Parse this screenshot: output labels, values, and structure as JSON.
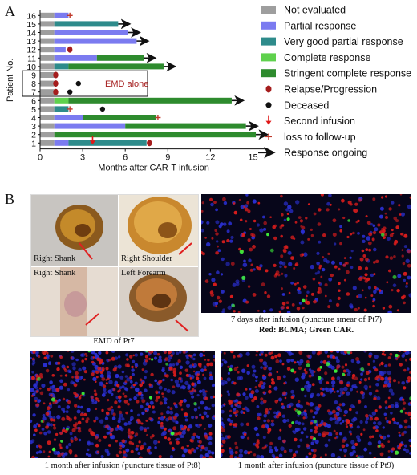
{
  "panel_a_letter": "A",
  "panel_b_letter": "B",
  "colors": {
    "not_evaluated": "#9e9e9e",
    "partial_response": "#7b7bf0",
    "very_good_partial_response": "#2e8b8b",
    "complete_response": "#5fd14d",
    "stringent_complete_response": "#2e8b2e",
    "relapse": "#a51d1d",
    "deceased": "#111111",
    "second_infusion": "#e01818",
    "loss_to_followup": "#c0392b"
  },
  "chart_data": {
    "type": "bar",
    "subtype": "swimmer-plot",
    "xlabel": "Months after CAR-T infusion",
    "ylabel": "Patient No.",
    "xlim": [
      0,
      16
    ],
    "xticks": [
      0,
      3,
      6,
      9,
      12,
      15
    ],
    "grid": false,
    "legend_position": "right",
    "series_legend": [
      {
        "key": "not_evaluated",
        "name": "Not evaluated",
        "kind": "bar"
      },
      {
        "key": "partial_response",
        "name": "Partial response",
        "kind": "bar"
      },
      {
        "key": "very_good_partial_response",
        "name": "Very good partial response",
        "kind": "bar"
      },
      {
        "key": "complete_response",
        "name": "Complete response",
        "kind": "bar"
      },
      {
        "key": "stringent_complete_response",
        "name": "Stringent complete response",
        "kind": "bar"
      },
      {
        "key": "relapse",
        "name": "Relapse/Progression",
        "kind": "oval"
      },
      {
        "key": "deceased",
        "name": "Deceased",
        "kind": "dot"
      },
      {
        "key": "second_infusion",
        "name": "Second infusion",
        "kind": "down-arrow"
      },
      {
        "key": "loss_to_followup",
        "name": "loss to follow-up",
        "kind": "plus"
      },
      {
        "key": "ongoing",
        "name": "Response ongoing",
        "kind": "right-arrow"
      }
    ],
    "annotation": "EMD alone",
    "emd_patients": [
      "7",
      "8",
      "9"
    ],
    "patients": [
      {
        "id": "16",
        "segments": [
          [
            "not_evaluated",
            0,
            1
          ],
          [
            "partial_response",
            1,
            2
          ]
        ],
        "markers": [
          [
            "loss_to_followup",
            2.1
          ]
        ]
      },
      {
        "id": "15",
        "segments": [
          [
            "not_evaluated",
            0,
            1
          ],
          [
            "very_good_partial_response",
            1,
            5.5
          ]
        ],
        "markers": [
          [
            "ongoing",
            5.5
          ]
        ]
      },
      {
        "id": "14",
        "segments": [
          [
            "not_evaluated",
            0,
            1
          ],
          [
            "partial_response",
            1,
            6.2
          ]
        ],
        "markers": [
          [
            "ongoing",
            6.2
          ]
        ]
      },
      {
        "id": "13",
        "segments": [
          [
            "not_evaluated",
            0,
            1
          ],
          [
            "partial_response",
            1,
            6.8
          ]
        ],
        "markers": [
          [
            "ongoing",
            6.8
          ]
        ]
      },
      {
        "id": "12",
        "segments": [
          [
            "not_evaluated",
            0,
            1
          ],
          [
            "partial_response",
            1,
            1.8
          ]
        ],
        "markers": [
          [
            "relapse",
            2.1
          ]
        ]
      },
      {
        "id": "11",
        "segments": [
          [
            "not_evaluated",
            0,
            1
          ],
          [
            "partial_response",
            1,
            4
          ],
          [
            "stringent_complete_response",
            4,
            7.3
          ]
        ],
        "markers": [
          [
            "ongoing",
            7.3
          ]
        ]
      },
      {
        "id": "10",
        "segments": [
          [
            "not_evaluated",
            0,
            1
          ],
          [
            "very_good_partial_response",
            1,
            2
          ],
          [
            "stringent_complete_response",
            2,
            8.7
          ]
        ],
        "markers": [
          [
            "ongoing",
            8.7
          ]
        ]
      },
      {
        "id": "9",
        "segments": [
          [
            "not_evaluated",
            0,
            1
          ]
        ],
        "markers": [
          [
            "relapse",
            1.1
          ]
        ]
      },
      {
        "id": "8",
        "segments": [
          [
            "not_evaluated",
            0,
            1
          ]
        ],
        "markers": [
          [
            "relapse",
            1.1
          ],
          [
            "deceased",
            2.7
          ]
        ]
      },
      {
        "id": "7",
        "segments": [
          [
            "not_evaluated",
            0,
            1
          ]
        ],
        "markers": [
          [
            "relapse",
            1.1
          ],
          [
            "deceased",
            2.1
          ]
        ]
      },
      {
        "id": "6",
        "segments": [
          [
            "not_evaluated",
            0,
            1
          ],
          [
            "complete_response",
            1,
            2
          ],
          [
            "stringent_complete_response",
            2,
            13.5
          ]
        ],
        "markers": [
          [
            "ongoing",
            13.5
          ]
        ]
      },
      {
        "id": "5",
        "segments": [
          [
            "not_evaluated",
            0,
            1
          ],
          [
            "very_good_partial_response",
            1,
            2
          ]
        ],
        "markers": [
          [
            "loss_to_followup",
            2.1
          ],
          [
            "deceased",
            4.4
          ]
        ]
      },
      {
        "id": "4",
        "segments": [
          [
            "not_evaluated",
            0,
            1
          ],
          [
            "partial_response",
            1,
            3
          ],
          [
            "stringent_complete_response",
            3,
            8.2
          ]
        ],
        "markers": [
          [
            "loss_to_followup",
            8.3
          ]
        ]
      },
      {
        "id": "3",
        "segments": [
          [
            "not_evaluated",
            0,
            1
          ],
          [
            "partial_response",
            1,
            6
          ],
          [
            "stringent_complete_response",
            6,
            14.5
          ]
        ],
        "markers": [
          [
            "ongoing",
            14.5
          ]
        ]
      },
      {
        "id": "2",
        "segments": [
          [
            "not_evaluated",
            0,
            1
          ],
          [
            "stringent_complete_response",
            1,
            15.2
          ]
        ],
        "markers": [
          [
            "ongoing",
            15.2
          ]
        ]
      },
      {
        "id": "1",
        "segments": [
          [
            "not_evaluated",
            0,
            1
          ],
          [
            "partial_response",
            1,
            2
          ],
          [
            "very_good_partial_response",
            2,
            7.5
          ]
        ],
        "markers": [
          [
            "second_infusion",
            3.7
          ],
          [
            "relapse",
            7.7
          ]
        ]
      }
    ]
  },
  "photos": {
    "labels": {
      "right_shank_top": "Right Shank",
      "right_shoulder": "Right Shoulder",
      "right_shank_bottom": "Right Shank",
      "left_forearm": "Left Forearm"
    },
    "caption": "EMD of Pt7"
  },
  "micro": {
    "caption_pt7_line1": "7 days after infusion (puncture smear of Pt7)",
    "caption_pt7_line2": "Red: BCMA; Green CAR.",
    "caption_pt8": "1 month after infusion (puncture tissue of Pt8)",
    "caption_pt9": "1 month after infusion (puncture tissue of Pt9)"
  }
}
